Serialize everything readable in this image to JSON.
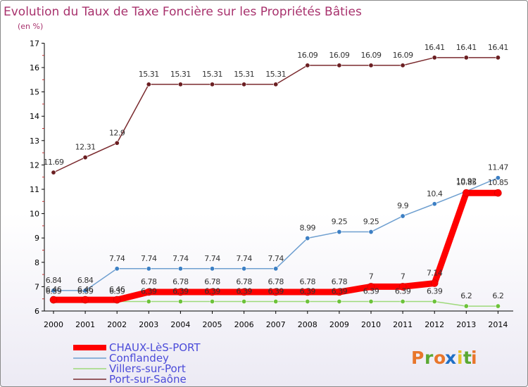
{
  "title": "Evolution du Taux de Taxe Foncière sur les Propriétés Bâties",
  "subtitle": "(en %)",
  "brand": {
    "text": "Proxiti",
    "letters": [
      "P",
      "r",
      "o",
      "x",
      "i",
      "t",
      "i"
    ],
    "colors": [
      "#e8762b",
      "#5aa832",
      "#e8762b",
      "#1f6fc5",
      "#e8c22b",
      "#5aa832",
      "#e8762b"
    ]
  },
  "chart_data": {
    "type": "line",
    "categories": [
      "2000",
      "2001",
      "2002",
      "2003",
      "2004",
      "2005",
      "2006",
      "2007",
      "2008",
      "2009",
      "2010",
      "2011",
      "2012",
      "2013",
      "2014"
    ],
    "ylim": [
      6,
      17
    ],
    "yticks": [
      6,
      7,
      8,
      9,
      10,
      11,
      12,
      13,
      14,
      15,
      16,
      17
    ],
    "grid": false,
    "legend_position": "bottom-left",
    "series": [
      {
        "name": "Port-sur-Saône",
        "color": "#7a2a2e",
        "marker_color": "#6b1f22",
        "values": [
          11.69,
          12.31,
          12.9,
          15.31,
          15.31,
          15.31,
          15.31,
          15.31,
          16.09,
          16.09,
          16.09,
          16.09,
          16.41,
          16.41,
          16.41
        ],
        "labels": [
          "11.69",
          "12.31",
          "12.9",
          "15.31",
          "15.31",
          "15.31",
          "15.31",
          "15.31",
          "16.09",
          "16.09",
          "16.09",
          "16.09",
          "16.41",
          "16.41",
          "16.41"
        ]
      },
      {
        "name": "Conflandey",
        "color": "#6e9fd0",
        "marker_color": "#3c7fc4",
        "values": [
          6.84,
          6.84,
          7.74,
          7.74,
          7.74,
          7.74,
          7.74,
          7.74,
          8.99,
          9.25,
          9.25,
          9.9,
          10.4,
          10.92,
          11.47
        ],
        "labels": [
          "6.84",
          "6.84",
          "7.74",
          "7.74",
          "7.74",
          "7.74",
          "7.74",
          "7.74",
          "8.99",
          "9.25",
          "9.25",
          "9.9",
          "10.4",
          "10.92",
          "11.47"
        ]
      },
      {
        "name": "Villers-sur-Port",
        "color": "#9ed97a",
        "marker_color": "#6cc23a",
        "values": [
          6.39,
          6.39,
          6.39,
          6.39,
          6.39,
          6.39,
          6.39,
          6.39,
          6.39,
          6.39,
          6.39,
          6.39,
          6.39,
          6.2,
          6.2
        ],
        "labels": [
          "6.39",
          "6.39",
          "6.39",
          "6.39",
          "6.39",
          "6.39",
          "6.39",
          "6.39",
          "6.39",
          "6.39",
          "6.39",
          "6.39",
          "6.39",
          "6.2",
          "6.2"
        ]
      },
      {
        "name": "CHAUX-LèS-PORT",
        "color": "#ff0000",
        "marker_color": "#ff0000",
        "values": [
          6.46,
          6.46,
          6.46,
          6.78,
          6.78,
          6.78,
          6.78,
          6.78,
          6.78,
          6.78,
          7,
          7,
          7.14,
          10.85,
          10.85
        ],
        "labels": [
          "6.46",
          "6.46",
          "6.46",
          "6.78",
          "6.78",
          "6.78",
          "6.78",
          "6.78",
          "6.78",
          "6.78",
          "7",
          "7",
          "7.14",
          "10.85",
          "10.85"
        ]
      }
    ],
    "legend_order": [
      "CHAUX-LèS-PORT",
      "Conflandey",
      "Villers-sur-Port",
      "Port-sur-Saône"
    ]
  }
}
